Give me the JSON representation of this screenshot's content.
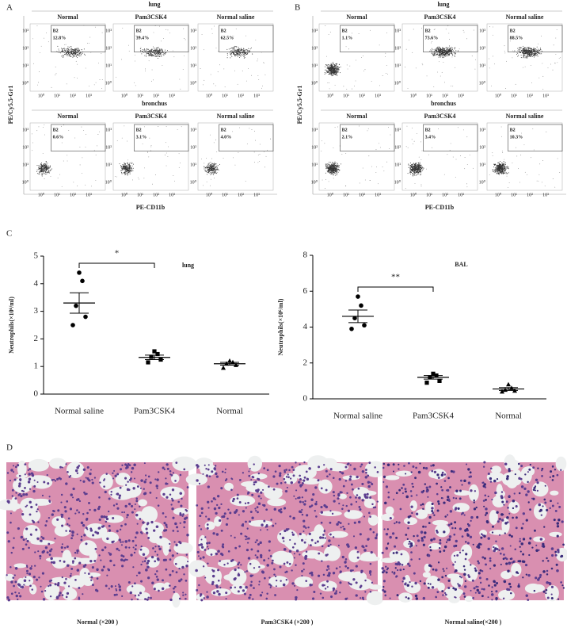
{
  "panels": {
    "A": "A",
    "B": "B",
    "C": "C",
    "D": "D"
  },
  "flow_ticks": [
    "10⁰",
    "10¹",
    "10²",
    "10³"
  ],
  "flow": [
    {
      "letter": "A",
      "y_label": "PE/Cy5.5-Gr1",
      "x_label": "PE-CD11b",
      "rows": [
        {
          "name": "lung",
          "plots": [
            {
              "title": "Normal",
              "gate": "B2",
              "percent": "12.8%"
            },
            {
              "title": "Pam3CSK4",
              "gate": "B2",
              "percent": "39.4%"
            },
            {
              "title": "Normal saline",
              "gate": "B2",
              "percent": "62.5%"
            }
          ]
        },
        {
          "name": "bronchus",
          "plots": [
            {
              "title": "Normal",
              "gate": "B2",
              "percent": "0.6%"
            },
            {
              "title": "Pam3CSK4",
              "gate": "B2",
              "percent": "3.1%"
            },
            {
              "title": "Normal saline",
              "gate": "B2",
              "percent": "4.0%"
            }
          ]
        }
      ]
    },
    {
      "letter": "B",
      "y_label": "PE/Cy5.5-Gr1",
      "x_label": "PE-CD11b",
      "rows": [
        {
          "name": "lung",
          "plots": [
            {
              "title": "Normal",
              "gate": "B2",
              "percent": "1.1%"
            },
            {
              "title": "Pam3CSK4",
              "gate": "B2",
              "percent": "73.6%"
            },
            {
              "title": "Normal saline",
              "gate": "B2",
              "percent": "88.5%"
            }
          ]
        },
        {
          "name": "bronchus",
          "plots": [
            {
              "title": "Normal",
              "gate": "B2",
              "percent": "2.1%"
            },
            {
              "title": "Pam3CSK4",
              "gate": "B2",
              "percent": "3.4%"
            },
            {
              "title": "Normal saline",
              "gate": "B2",
              "percent": "10.3%"
            }
          ]
        }
      ]
    }
  ],
  "chart_data": [
    {
      "type": "dot",
      "title": "lung",
      "ylabel": "Neutrophils(×10⁶/ml)",
      "categories": [
        "Normal saline",
        "Pam3CSK4",
        "Normal"
      ],
      "points": [
        [
          4.4,
          4.1,
          3.2,
          2.8,
          2.5
        ],
        [
          1.55,
          1.45,
          1.35,
          1.25,
          1.15
        ],
        [
          1.2,
          1.15,
          1.1,
          1.05,
          0.95
        ]
      ],
      "means": [
        3.3,
        1.33,
        1.1
      ],
      "errors": [
        0.37,
        0.08,
        0.05
      ],
      "markers": [
        "circle",
        "square",
        "triangle"
      ],
      "color": "#000000",
      "ylim": [
        0,
        5
      ],
      "yticks": [
        0,
        1,
        2,
        3,
        4,
        5
      ],
      "annotations": [
        {
          "text": "*",
          "from": 0,
          "to": 1
        }
      ]
    },
    {
      "type": "dot",
      "title": "BAL",
      "ylabel": "Neutrophils(×10⁶/ml)",
      "categories": [
        "Normal saline",
        "Pam3CSK4",
        "Normal"
      ],
      "points": [
        [
          5.7,
          5.2,
          4.5,
          4.1,
          3.9
        ],
        [
          1.4,
          1.3,
          1.2,
          1.0,
          0.9
        ],
        [
          0.8,
          0.6,
          0.5,
          0.45,
          0.4
        ]
      ],
      "means": [
        4.6,
        1.2,
        0.55
      ],
      "errors": [
        0.35,
        0.1,
        0.08
      ],
      "markers": [
        "circle",
        "square",
        "triangle"
      ],
      "color": "#000000",
      "ylim": [
        0,
        8
      ],
      "yticks": [
        0,
        2,
        4,
        6,
        8
      ],
      "annotations": [
        {
          "text": "**",
          "from": 0,
          "to": 1
        }
      ]
    }
  ],
  "histology": [
    {
      "caption": "Normal (×200 )"
    },
    {
      "caption": "Pam3CSK4 (×200 )"
    },
    {
      "caption": "Normal saline(×200 )"
    }
  ]
}
